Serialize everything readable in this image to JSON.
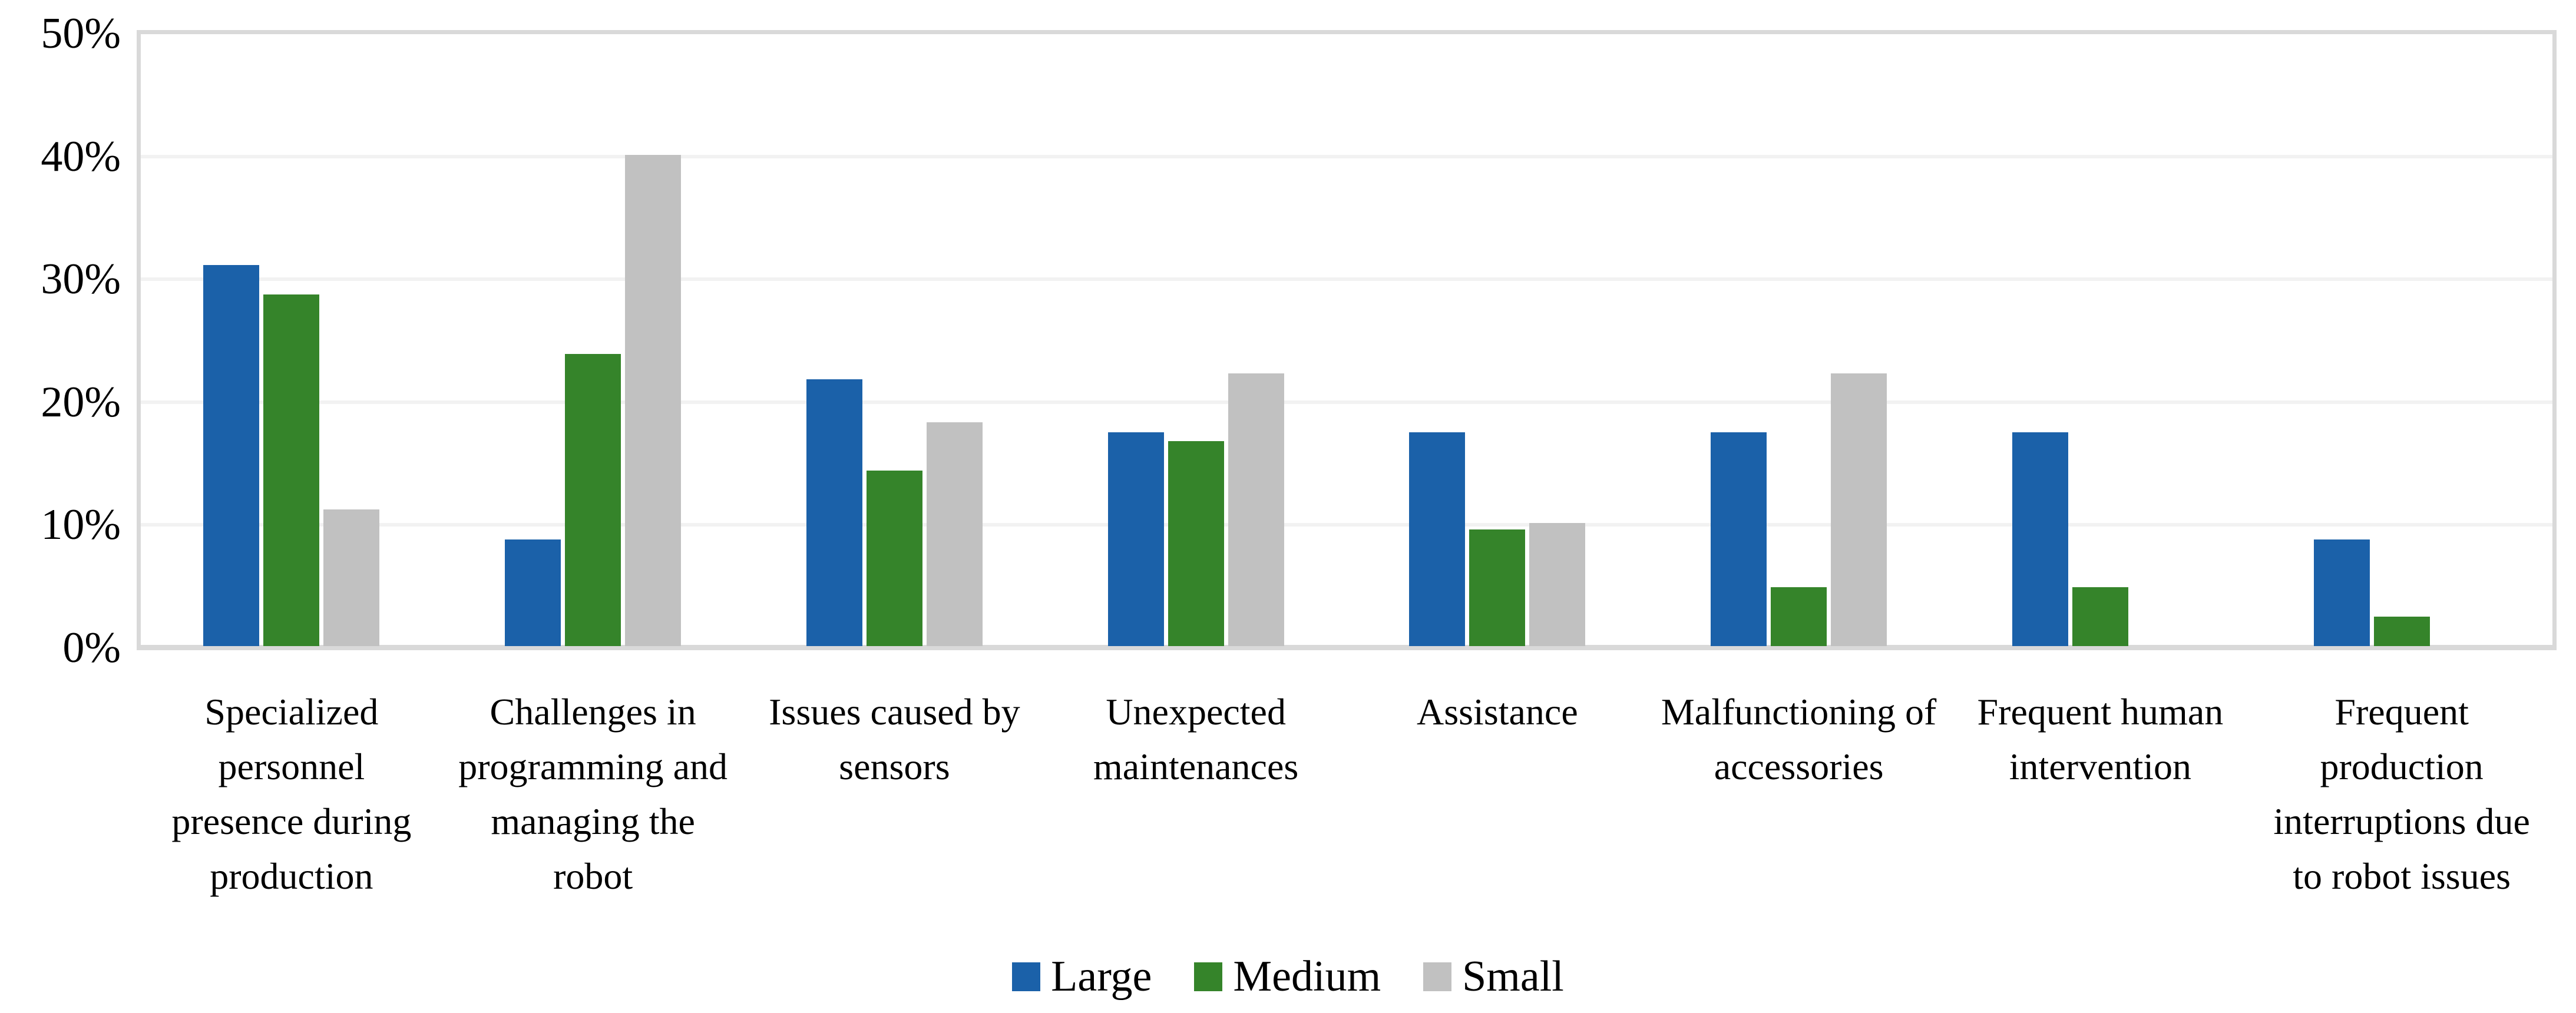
{
  "chart_data": {
    "type": "bar",
    "title": "",
    "xlabel": "",
    "ylabel": "",
    "ylim": [
      0,
      50
    ],
    "grid": true,
    "legend_position": "bottom",
    "y_ticks": [
      {
        "pct": 50,
        "label": "50%"
      },
      {
        "pct": 40,
        "label": "40%"
      },
      {
        "pct": 30,
        "label": "30%"
      },
      {
        "pct": 20,
        "label": "20%"
      },
      {
        "pct": 10,
        "label": "10%"
      },
      {
        "pct": 0,
        "label": "0%"
      }
    ],
    "categories": [
      "Specialized personnel presence during production",
      "Challenges in programming and managing the robot",
      "Issues caused by sensors",
      "Unexpected maintenances",
      "Assistance",
      "Malfunctioning of accessories",
      "Frequent human intervention",
      "Frequent production interruptions due to robot issues"
    ],
    "series": [
      {
        "name": "Large",
        "color": "#1b61a9",
        "values": [
          31.0,
          8.7,
          21.7,
          17.4,
          17.4,
          17.4,
          17.4,
          8.7
        ]
      },
      {
        "name": "Medium",
        "color": "#35842a",
        "values": [
          28.6,
          23.8,
          14.3,
          16.7,
          9.5,
          4.8,
          4.8,
          2.4
        ]
      },
      {
        "name": "Small",
        "color": "#c1c1c1",
        "values": [
          11.1,
          40.0,
          18.2,
          22.2,
          10.0,
          22.2,
          0,
          0
        ]
      }
    ]
  },
  "colors": {
    "plot_border": "#d9d9d9",
    "gridline": "#f2f2f2",
    "text": "#000000",
    "background": "#ffffff"
  }
}
